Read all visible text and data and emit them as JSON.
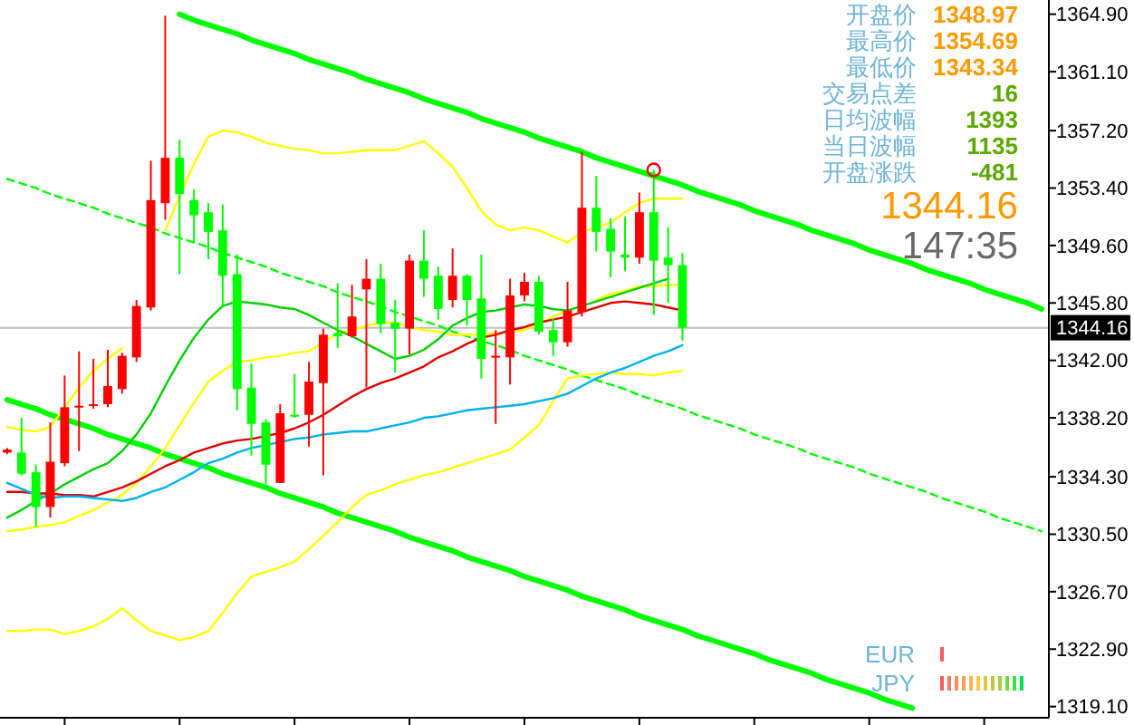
{
  "chart_data": {
    "type": "candlestick",
    "categories": [
      null,
      null,
      null,
      null,
      null,
      null,
      null,
      null,
      null,
      null,
      null,
      null,
      null,
      null,
      null,
      null,
      null,
      null,
      null,
      null,
      null,
      null,
      null,
      null,
      null,
      null,
      null,
      null,
      null,
      null,
      null,
      null,
      null,
      null,
      null,
      null,
      null,
      null,
      null,
      null,
      null,
      null,
      null,
      null,
      null,
      null,
      null,
      null,
      null,
      null,
      null,
      null,
      null,
      null,
      null,
      null,
      null,
      null,
      null,
      null,
      null,
      null,
      null,
      null,
      null,
      null,
      null,
      null,
      null,
      null,
      null,
      null,
      null
    ],
    "ohlc": [
      [
        1335.9,
        1336.2,
        1335.8,
        1336.1
      ],
      [
        1335.9,
        1338.2,
        1334.4,
        1334.5
      ],
      [
        1334.6,
        1335.1,
        1331.0,
        1332.3
      ],
      [
        1332.3,
        1337.9,
        1331.6,
        1335.3
      ],
      [
        1335.2,
        1341.0,
        1335.0,
        1338.9
      ],
      [
        1338.9,
        1342.6,
        1336.0,
        1339.0
      ],
      [
        1339.0,
        1342.1,
        1338.8,
        1339.1
      ],
      [
        1339.1,
        1342.7,
        1338.9,
        1340.3
      ],
      [
        1340.1,
        1342.5,
        1339.8,
        1342.3
      ],
      [
        1342.2,
        1346.0,
        1341.9,
        1345.6
      ],
      [
        1345.5,
        1355.2,
        1345.3,
        1352.6
      ],
      [
        1352.4,
        1364.8,
        1351.3,
        1355.4
      ],
      [
        1355.4,
        1356.6,
        1347.7,
        1353.0
      ],
      [
        1352.6,
        1353.3,
        1349.8,
        1351.6
      ],
      [
        1351.8,
        1352.4,
        1348.7,
        1350.5
      ],
      [
        1350.6,
        1352.3,
        1345.5,
        1347.6
      ],
      [
        1347.7,
        1349.0,
        1338.7,
        1340.1
      ],
      [
        1340.2,
        1341.8,
        1335.7,
        1337.8
      ],
      [
        1337.9,
        1338.1,
        1333.8,
        1335.1
      ],
      [
        1333.9,
        1339.1,
        1333.9,
        1338.5
      ],
      [
        1338.4,
        1341.1,
        1338.2,
        1338.3
      ],
      [
        1338.4,
        1341.9,
        1336.3,
        1340.6
      ],
      [
        1340.5,
        1344.1,
        1334.4,
        1343.7
      ],
      [
        1343.8,
        1347.1,
        1342.8,
        1343.6
      ],
      [
        1343.6,
        1347.0,
        1343.5,
        1344.9
      ],
      [
        1346.7,
        1348.7,
        1340.2,
        1347.4
      ],
      [
        1347.4,
        1348.4,
        1343.8,
        1344.4
      ],
      [
        1344.5,
        1346.0,
        1341.2,
        1344.1
      ],
      [
        1344.1,
        1349.0,
        1342.4,
        1348.6
      ],
      [
        1348.6,
        1350.6,
        1346.2,
        1347.4
      ],
      [
        1347.6,
        1348.2,
        1344.7,
        1345.4
      ],
      [
        1346.0,
        1349.4,
        1345.5,
        1347.6
      ],
      [
        1347.6,
        1347.7,
        1344.3,
        1346.0
      ],
      [
        1346.1,
        1349.0,
        1340.8,
        1342.1
      ],
      [
        1342.2,
        1344.0,
        1337.8,
        1342.3
      ],
      [
        1342.2,
        1347.4,
        1340.4,
        1346.3
      ],
      [
        1346.3,
        1347.8,
        1345.9,
        1347.2
      ],
      [
        1347.2,
        1347.6,
        1343.7,
        1343.9
      ],
      [
        1344.0,
        1344.8,
        1342.3,
        1343.2
      ],
      [
        1343.2,
        1347.2,
        1342.9,
        1345.3
      ],
      [
        1345.2,
        1355.8,
        1344.9,
        1352.1
      ],
      [
        1352.1,
        1354.2,
        1349.2,
        1350.5
      ],
      [
        1350.7,
        1351.4,
        1347.5,
        1349.2
      ],
      [
        1349.0,
        1351.5,
        1347.9,
        1348.8
      ],
      [
        1348.8,
        1353.1,
        1348.4,
        1351.8
      ],
      [
        1351.8,
        1354.6,
        1345.0,
        1348.6
      ],
      [
        1348.8,
        1350.8,
        1345.8,
        1348.3
      ],
      [
        1348.3,
        1349.1,
        1343.3,
        1344.16
      ],
      null,
      null,
      null,
      null,
      null,
      null,
      null,
      null,
      null,
      null,
      null,
      null,
      null,
      null,
      null,
      null,
      null,
      null,
      null,
      null,
      null,
      null,
      null,
      null,
      null
    ],
    "colors": [
      "#ff0000",
      "#00ff00",
      "#00ff00",
      "#ff0000",
      "#ff0000",
      "#ff0000",
      "#ff0000",
      "#ff0000",
      "#ff0000",
      "#ff0000",
      "#ff0000",
      "#ff0000",
      "#00ff00",
      "#00ff00",
      "#00ff00",
      "#00ff00",
      "#00ff00",
      "#00ff00",
      "#00ff00",
      "#ff0000",
      "#00ff00",
      "#ff0000",
      "#ff0000",
      "#00ff00",
      "#ff0000",
      "#ff0000",
      "#00ff00",
      "#00ff00",
      "#ff0000",
      "#00ff00",
      "#00ff00",
      "#ff0000",
      "#00ff00",
      "#00ff00",
      "#ff0000",
      "#ff0000",
      "#ff0000",
      "#00ff00",
      "#00ff00",
      "#ff0000",
      "#ff0000",
      "#00ff00",
      "#00ff00",
      "#00ff00",
      "#ff0000",
      "#00ff00",
      "#00ff00",
      "#00ff00",
      null,
      null,
      null,
      null,
      null,
      null,
      null,
      null,
      null,
      null,
      null,
      null,
      null,
      null,
      null,
      null,
      null,
      null,
      null,
      null,
      null,
      null,
      null,
      null,
      null
    ],
    "series": [
      {
        "type": "line",
        "color": "#00ff00",
        "values": [
          null,
          null,
          null,
          null,
          null,
          null,
          null,
          null,
          null,
          null,
          null,
          null,
          1364.9,
          1364.5,
          1364.2,
          1363.9,
          1363.6,
          1363.2,
          1362.9,
          1362.6,
          1362.3,
          1361.9,
          1361.6,
          1361.3,
          1361.0,
          1360.6,
          1360.3,
          1360.0,
          1359.7,
          1359.3,
          1359.0,
          1358.7,
          1358.4,
          1358.0,
          1357.7,
          1357.4,
          1357.1,
          1356.7,
          1356.4,
          1356.1,
          1355.8,
          1355.4,
          1355.1,
          1354.8,
          1354.5,
          1354.2,
          1353.9,
          1353.6,
          1353.2,
          1352.9,
          1352.6,
          1352.3,
          1351.9,
          1351.6,
          1351.3,
          1351.0,
          1350.6,
          1350.3,
          1350.0,
          1349.7,
          1349.3,
          1349.0,
          1348.7,
          1348.4,
          1348.0,
          1347.7,
          1347.4,
          1347.1,
          1346.7,
          1346.4,
          1346.1,
          1345.8,
          1345.4
        ]
      },
      {
        "type": "line",
        "color": "#00ff00",
        "line_style": "dashed",
        "values": [
          1354.0,
          1353.7,
          1353.4,
          1353.0,
          1352.7,
          1352.4,
          1352.1,
          1351.7,
          1351.4,
          1351.1,
          1350.8,
          1350.4,
          1350.1,
          1349.8,
          1349.5,
          1349.1,
          1348.8,
          1348.5,
          1348.2,
          1347.8,
          1347.5,
          1347.2,
          1346.9,
          1346.5,
          1346.2,
          1345.9,
          1345.6,
          1345.2,
          1344.9,
          1344.6,
          1344.3,
          1343.9,
          1343.6,
          1343.3,
          1343.0,
          1342.7,
          1342.3,
          1342.0,
          1341.7,
          1341.4,
          1341.0,
          1340.7,
          1340.4,
          1340.1,
          1339.7,
          1339.4,
          1339.1,
          1338.8,
          1338.4,
          1338.1,
          1337.8,
          1337.5,
          1337.1,
          1336.8,
          1336.5,
          1336.2,
          1335.8,
          1335.5,
          1335.2,
          1334.9,
          1334.5,
          1334.2,
          1333.9,
          1333.6,
          1333.3,
          1332.9,
          1332.6,
          1332.3,
          1332.0,
          1331.6,
          1331.3,
          1331.0,
          1330.7
        ]
      },
      {
        "type": "line",
        "color": "#00ff00",
        "values": [
          1339.4,
          1339.1,
          1338.8,
          1338.4,
          1338.1,
          1337.8,
          1337.5,
          1337.1,
          1336.8,
          1336.5,
          1336.2,
          1335.8,
          1335.5,
          1335.2,
          1334.9,
          1334.5,
          1334.2,
          1333.9,
          1333.6,
          1333.2,
          1332.9,
          1332.6,
          1332.3,
          1331.9,
          1331.6,
          1331.3,
          1331.0,
          1330.7,
          1330.3,
          1330.0,
          1329.7,
          1329.4,
          1329.0,
          1328.7,
          1328.4,
          1328.1,
          1327.7,
          1327.4,
          1327.1,
          1326.8,
          1326.4,
          1326.1,
          1325.8,
          1325.5,
          1325.1,
          1324.8,
          1324.5,
          1324.2,
          1323.8,
          1323.5,
          1323.2,
          1322.9,
          1322.6,
          1322.2,
          1321.9,
          1321.6,
          1321.3,
          1320.9,
          1320.6,
          1320.3,
          1320.0,
          1319.6,
          1319.3,
          1319.0,
          null,
          null,
          null,
          null,
          null,
          null,
          null,
          null,
          null
        ]
      },
      {
        "type": "line",
        "color": "#ffff00",
        "values": [
          1337.6,
          1337.4,
          1337.3,
          1337.6,
          1338.9,
          1340.2,
          1341.3,
          1342.1,
          1342.8,
          null,
          null,
          1350.6,
          1352.9,
          1355.0,
          1356.8,
          1357.2,
          1357.1,
          1356.8,
          1356.4,
          1356.2,
          1356.0,
          1355.9,
          1355.7,
          1355.7,
          1355.8,
          1355.9,
          1355.9,
          1355.9,
          1356.2,
          1356.5,
          1355.7,
          1354.8,
          1353.4,
          1351.9,
          1351.0,
          1350.6,
          1350.8,
          1350.6,
          1350.2,
          1349.8,
          1350.5,
          1350.8,
          1351.1,
          1351.8,
          1352.4,
          1352.7,
          1352.7,
          1352.7,
          null,
          null,
          null,
          null,
          null,
          null,
          null,
          null,
          null,
          null,
          null,
          null,
          null,
          null,
          null,
          null,
          null,
          null,
          null,
          null,
          null,
          null,
          null,
          null,
          null
        ]
      },
      {
        "type": "line",
        "color": "#ffff00",
        "values": [
          1330.7,
          1330.8,
          1331.0,
          1331.1,
          1331.3,
          1331.7,
          1332.1,
          1332.6,
          1333.1,
          1333.9,
          1335.0,
          1336.2,
          1337.7,
          1339.2,
          1340.6,
          1341.3,
          1341.9,
          1342.0,
          1342.2,
          1342.3,
          1342.5,
          1342.6,
          1343.2,
          1343.8,
          1344.0,
          1344.3,
          1344.5,
          1344.5,
          1344.2,
          1344.0,
          1343.9,
          1343.7,
          1343.7,
          1343.7,
          1343.8,
          1343.9,
          1344.0,
          1344.4,
          1344.9,
          1345.3,
          null,
          1346.0,
          1346.4,
          1346.6,
          1346.9,
          1346.9,
          1347.0,
          1347.0,
          null,
          null,
          null,
          null,
          null,
          null,
          null,
          null,
          null,
          null,
          null,
          null,
          null,
          null,
          null,
          null,
          null,
          null,
          null,
          null,
          null,
          null,
          null,
          null,
          null
        ]
      },
      {
        "type": "line",
        "color": "#ffff00",
        "values": [
          1324.1,
          1324.1,
          1324.2,
          1324.2,
          1323.9,
          1324.1,
          1324.4,
          1324.9,
          1325.6,
          1324.8,
          1324.1,
          1323.8,
          1323.5,
          1323.7,
          1324.1,
          1325.3,
          1326.6,
          1327.7,
          1328.0,
          1328.3,
          1328.7,
          1329.5,
          1330.4,
          1331.3,
          1332.3,
          1333.1,
          1333.4,
          1333.8,
          1334.1,
          1334.4,
          1334.6,
          1334.9,
          1335.2,
          1335.5,
          1335.8,
          1336.1,
          1336.9,
          1337.7,
          1339.3,
          1340.8,
          1341.0,
          1341.1,
          1341.2,
          1341.1,
          1341.1,
          1341.0,
          1341.2,
          1341.3,
          null,
          null,
          null,
          null,
          null,
          null,
          null,
          null,
          null,
          null,
          null,
          null,
          null,
          null,
          null,
          null,
          null,
          null,
          null,
          null,
          null,
          null,
          null,
          null,
          null
        ]
      },
      {
        "type": "line",
        "color": "#00d000",
        "values": [
          1331.6,
          1332.1,
          1332.7,
          1333.2,
          1333.8,
          1334.3,
          1334.8,
          1335.2,
          1336.0,
          1337.1,
          1338.5,
          1340.3,
          1342.0,
          1343.5,
          1344.7,
          1345.6,
          1345.9,
          1345.8,
          1345.7,
          1345.5,
          1345.4,
          1345.0,
          1344.5,
          1344.0,
          1343.6,
          1343.1,
          1342.6,
          1342.1,
          1342.3,
          1342.7,
          1343.4,
          1344.3,
          1344.8,
          1345.2,
          1345.3,
          1345.5,
          1345.7,
          1345.6,
          1345.4,
          1345.3,
          1345.6,
          1345.9,
          1346.2,
          1346.5,
          1346.8,
          1347.1,
          1347.4,
          null,
          null,
          null,
          null,
          null,
          null,
          null,
          null,
          null,
          null,
          null,
          null,
          null,
          null,
          null,
          null,
          null,
          null,
          null,
          null,
          null,
          null,
          null,
          null,
          null,
          null
        ]
      },
      {
        "type": "line",
        "color": "#e00000",
        "values": [
          1333.3,
          1333.3,
          1333.2,
          1333.2,
          1333.1,
          1333.1,
          1333.0,
          1333.3,
          1333.6,
          1334.0,
          1334.5,
          1335.0,
          1335.4,
          1335.9,
          1336.2,
          1336.5,
          1336.7,
          1336.8,
          1337.0,
          1337.2,
          1337.5,
          1337.9,
          1338.4,
          1339.0,
          1339.6,
          1340.1,
          1340.5,
          1340.8,
          1341.2,
          1341.6,
          1342.2,
          1342.6,
          1343.1,
          1343.5,
          1343.7,
          1344.0,
          1344.2,
          1344.5,
          1344.7,
          1344.9,
          1345.2,
          1345.5,
          1345.8,
          1345.9,
          1345.8,
          1345.7,
          1345.5,
          1345.3,
          null,
          null,
          null,
          null,
          null,
          null,
          null,
          null,
          null,
          null,
          null,
          null,
          null,
          null,
          null,
          null,
          null,
          null,
          null,
          null,
          null,
          null,
          null,
          null,
          null
        ]
      },
      {
        "type": "line",
        "color": "#00b0f0",
        "values": [
          1333.9,
          1333.5,
          1333.1,
          1332.9,
          1333.0,
          1333.0,
          1332.9,
          1332.8,
          1332.7,
          1332.9,
          1333.3,
          1333.6,
          1334.1,
          1334.6,
          1335.2,
          1335.5,
          1335.9,
          1336.2,
          1336.4,
          1336.6,
          1336.8,
          1336.9,
          1337.1,
          1337.2,
          1337.3,
          1337.3,
          1337.5,
          1337.7,
          1337.9,
          1338.2,
          1338.3,
          1338.5,
          1338.7,
          1338.8,
          1338.9,
          1339.0,
          1339.1,
          1339.3,
          1339.5,
          1339.8,
          1340.3,
          1340.8,
          1341.2,
          1341.5,
          1341.9,
          1342.3,
          1342.6,
          1343.0,
          null,
          null,
          null,
          null,
          null,
          null,
          null,
          null,
          null,
          null,
          null,
          null,
          null,
          null,
          null,
          null,
          null,
          null,
          null,
          null,
          null,
          null,
          null,
          null,
          null
        ]
      },
      {
        "type": "scatter",
        "color": "#ff0000",
        "marker": "circle",
        "values": [
          null,
          null,
          null,
          null,
          null,
          null,
          null,
          null,
          null,
          null,
          null,
          null,
          null,
          null,
          null,
          null,
          null,
          null,
          null,
          null,
          null,
          null,
          null,
          null,
          null,
          null,
          null,
          null,
          null,
          null,
          null,
          null,
          null,
          null,
          null,
          null,
          null,
          null,
          null,
          null,
          null,
          null,
          null,
          null,
          null,
          1354.6,
          null,
          null,
          null,
          null,
          null,
          null,
          null,
          null,
          null,
          null,
          null,
          null,
          null,
          null,
          null,
          null,
          null,
          null,
          null,
          null,
          null,
          null,
          null,
          null,
          null,
          null,
          null
        ]
      }
    ],
    "ylim": [
      1318.6,
      1365.6
    ],
    "yticks": [
      {
        "value": 1319.1,
        "label": "1319.10"
      },
      {
        "value": 1322.9,
        "label": "1322.90"
      },
      {
        "value": 1326.7,
        "label": "1326.70"
      },
      {
        "value": 1330.5,
        "label": "1330.50"
      },
      {
        "value": 1334.3,
        "label": "1334.30"
      },
      {
        "value": 1338.2,
        "label": "1338.20"
      },
      {
        "value": 1342.0,
        "label": "1342.00"
      },
      {
        "value": 1345.8,
        "label": "1345.80"
      },
      {
        "value": 1349.6,
        "label": "1349.60"
      },
      {
        "value": 1353.4,
        "label": "1353.40"
      },
      {
        "value": 1357.2,
        "label": "1357.20"
      },
      {
        "value": 1361.1,
        "label": "1361.10"
      },
      {
        "value": 1364.9,
        "label": "1364.90"
      }
    ],
    "tick_labels": "y",
    "ref_lines": [
      {
        "axis": "y",
        "value": 1344.16,
        "label": "1344.16",
        "color": "#c0c0c0"
      }
    ],
    "annotations": [
      "开盘价",
      "1348.97",
      "最高价",
      "1354.69",
      "最低价",
      "1343.34",
      "交易点差",
      "16",
      "日均波幅",
      "1393",
      "当日波幅",
      "1135",
      "开盘涨跌",
      "-481",
      "1344.16",
      "147:35",
      "EUR",
      "JPY"
    ]
  }
}
